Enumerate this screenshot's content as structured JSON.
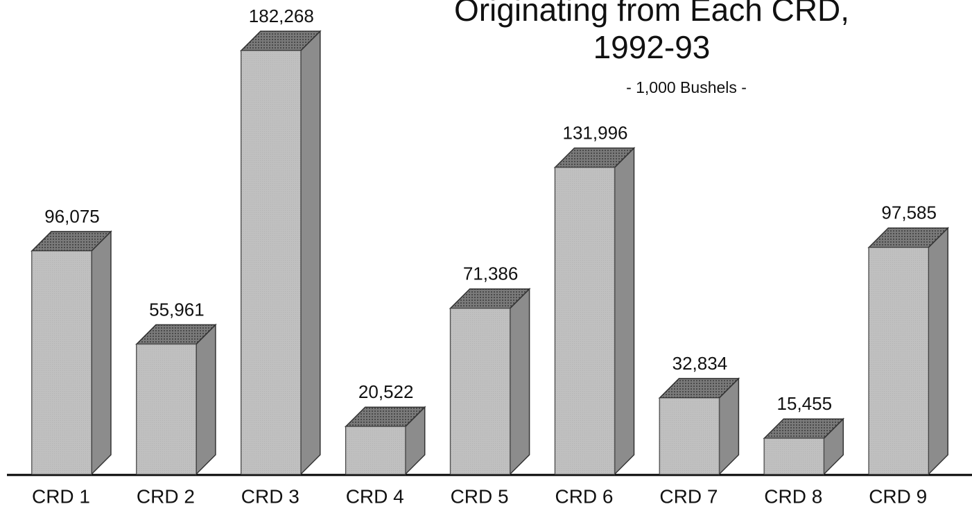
{
  "chart_data": {
    "type": "bar3d",
    "title": [
      "Originating from Each CRD,",
      "1992-93"
    ],
    "subtitle": "- 1,000 Bushels -",
    "categories": [
      "CRD 1",
      "CRD 2",
      "CRD 3",
      "CRD 4",
      "CRD 5",
      "CRD 6",
      "CRD 7",
      "CRD 8",
      "CRD 9"
    ],
    "values": [
      96075,
      55961,
      182268,
      20522,
      71386,
      131996,
      32834,
      15455,
      97585
    ],
    "value_labels": [
      "96,075",
      "55,961",
      "182,268",
      "20,522",
      "71,386",
      "131,996",
      "32,834",
      "15,455",
      "97,585"
    ],
    "color": "#bdbdbd"
  }
}
